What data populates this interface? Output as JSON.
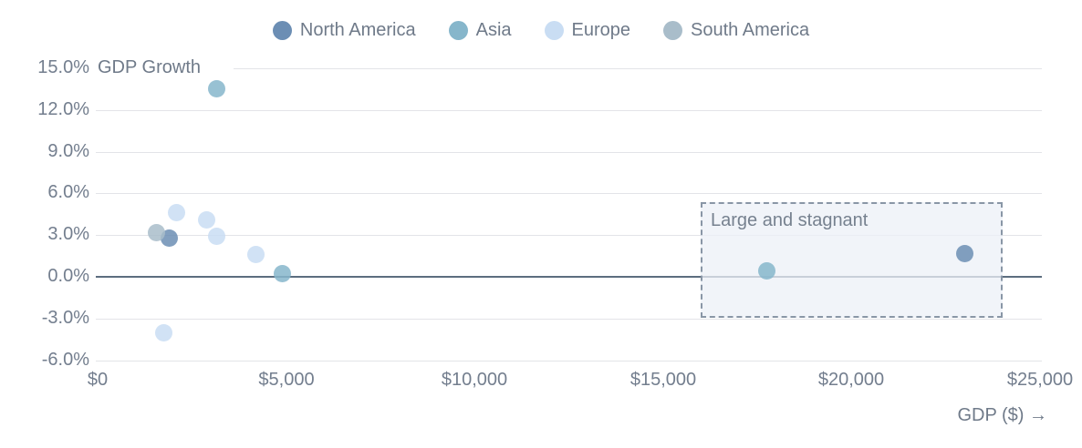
{
  "legend": {
    "items": [
      {
        "label": "North America",
        "color": "#6c8eb4"
      },
      {
        "label": "Asia",
        "color": "#86b6cb"
      },
      {
        "label": "Europe",
        "color": "#c9ddf3"
      },
      {
        "label": "South America",
        "color": "#a9bdca"
      }
    ]
  },
  "chart_data": {
    "type": "scatter",
    "title": "",
    "ylabel": "GDP Growth",
    "xlabel": "GDP ($) →",
    "xlim": [
      0,
      25000
    ],
    "ylim": [
      -6,
      15
    ],
    "grid": true,
    "legend_position": "top",
    "xticks": [
      {
        "value": 0,
        "label": "$0"
      },
      {
        "value": 5000,
        "label": "$5,000"
      },
      {
        "value": 10000,
        "label": "$10,000"
      },
      {
        "value": 15000,
        "label": "$15,000"
      },
      {
        "value": 20000,
        "label": "$20,000"
      },
      {
        "value": 25000,
        "label": "$25,000"
      }
    ],
    "yticks": [
      {
        "value": 15,
        "label": "15.0%"
      },
      {
        "value": 12,
        "label": "12.0%"
      },
      {
        "value": 9,
        "label": "9.0%"
      },
      {
        "value": 6,
        "label": "6.0%"
      },
      {
        "value": 3,
        "label": "3.0%"
      },
      {
        "value": 0,
        "label": "0.0%"
      },
      {
        "value": -3,
        "label": "-3.0%"
      },
      {
        "value": -6,
        "label": "-6.0%"
      }
    ],
    "series": [
      {
        "name": "North America",
        "color": "#6c8eb4",
        "points": [
          {
            "x": 1900,
            "y": 2.8
          },
          {
            "x": 23000,
            "y": 1.7
          }
        ]
      },
      {
        "name": "Asia",
        "color": "#86b6cb",
        "points": [
          {
            "x": 3150,
            "y": 13.5
          },
          {
            "x": 4900,
            "y": 0.2
          },
          {
            "x": 17750,
            "y": 0.4
          }
        ]
      },
      {
        "name": "Europe",
        "color": "#c9ddf3",
        "points": [
          {
            "x": 2100,
            "y": 4.6
          },
          {
            "x": 2900,
            "y": 4.1
          },
          {
            "x": 3150,
            "y": 2.9
          },
          {
            "x": 4200,
            "y": 1.6
          },
          {
            "x": 1750,
            "y": -4.0
          }
        ]
      },
      {
        "name": "South America",
        "color": "#a9bdca",
        "points": [
          {
            "x": 1550,
            "y": 3.2
          }
        ]
      }
    ],
    "zero_line": 0,
    "annotation": {
      "label": "Large and stagnant",
      "x1": 16000,
      "x2": 24000,
      "y1": -2.9,
      "y2": 5.4
    }
  }
}
